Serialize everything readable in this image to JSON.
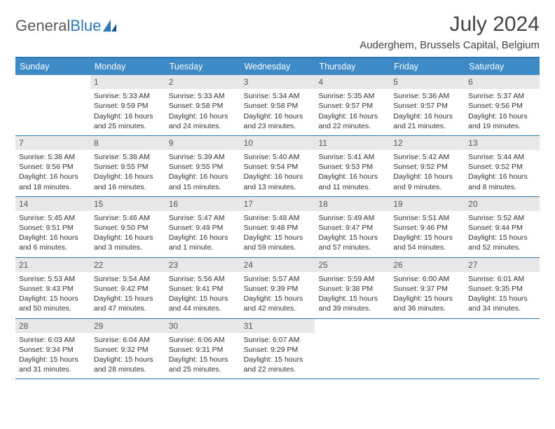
{
  "logo": {
    "text1": "General",
    "text2": "Blue"
  },
  "title": "July 2024",
  "location": "Auderghem, Brussels Capital, Belgium",
  "colors": {
    "header_bar": "#3e8ac6",
    "border": "#2d77b5",
    "daynum_bg": "#e8e8e8",
    "text": "#333333",
    "logo_gray": "#5a5a5a"
  },
  "day_names": [
    "Sunday",
    "Monday",
    "Tuesday",
    "Wednesday",
    "Thursday",
    "Friday",
    "Saturday"
  ],
  "weeks": [
    [
      {
        "n": "",
        "sr": "",
        "ss": "",
        "dl1": "",
        "dl2": ""
      },
      {
        "n": "1",
        "sr": "Sunrise: 5:33 AM",
        "ss": "Sunset: 9:59 PM",
        "dl1": "Daylight: 16 hours",
        "dl2": "and 25 minutes."
      },
      {
        "n": "2",
        "sr": "Sunrise: 5:33 AM",
        "ss": "Sunset: 9:58 PM",
        "dl1": "Daylight: 16 hours",
        "dl2": "and 24 minutes."
      },
      {
        "n": "3",
        "sr": "Sunrise: 5:34 AM",
        "ss": "Sunset: 9:58 PM",
        "dl1": "Daylight: 16 hours",
        "dl2": "and 23 minutes."
      },
      {
        "n": "4",
        "sr": "Sunrise: 5:35 AM",
        "ss": "Sunset: 9:57 PM",
        "dl1": "Daylight: 16 hours",
        "dl2": "and 22 minutes."
      },
      {
        "n": "5",
        "sr": "Sunrise: 5:36 AM",
        "ss": "Sunset: 9:57 PM",
        "dl1": "Daylight: 16 hours",
        "dl2": "and 21 minutes."
      },
      {
        "n": "6",
        "sr": "Sunrise: 5:37 AM",
        "ss": "Sunset: 9:56 PM",
        "dl1": "Daylight: 16 hours",
        "dl2": "and 19 minutes."
      }
    ],
    [
      {
        "n": "7",
        "sr": "Sunrise: 5:38 AM",
        "ss": "Sunset: 9:56 PM",
        "dl1": "Daylight: 16 hours",
        "dl2": "and 18 minutes."
      },
      {
        "n": "8",
        "sr": "Sunrise: 5:38 AM",
        "ss": "Sunset: 9:55 PM",
        "dl1": "Daylight: 16 hours",
        "dl2": "and 16 minutes."
      },
      {
        "n": "9",
        "sr": "Sunrise: 5:39 AM",
        "ss": "Sunset: 9:55 PM",
        "dl1": "Daylight: 16 hours",
        "dl2": "and 15 minutes."
      },
      {
        "n": "10",
        "sr": "Sunrise: 5:40 AM",
        "ss": "Sunset: 9:54 PM",
        "dl1": "Daylight: 16 hours",
        "dl2": "and 13 minutes."
      },
      {
        "n": "11",
        "sr": "Sunrise: 5:41 AM",
        "ss": "Sunset: 9:53 PM",
        "dl1": "Daylight: 16 hours",
        "dl2": "and 11 minutes."
      },
      {
        "n": "12",
        "sr": "Sunrise: 5:42 AM",
        "ss": "Sunset: 9:52 PM",
        "dl1": "Daylight: 16 hours",
        "dl2": "and 9 minutes."
      },
      {
        "n": "13",
        "sr": "Sunrise: 5:44 AM",
        "ss": "Sunset: 9:52 PM",
        "dl1": "Daylight: 16 hours",
        "dl2": "and 8 minutes."
      }
    ],
    [
      {
        "n": "14",
        "sr": "Sunrise: 5:45 AM",
        "ss": "Sunset: 9:51 PM",
        "dl1": "Daylight: 16 hours",
        "dl2": "and 6 minutes."
      },
      {
        "n": "15",
        "sr": "Sunrise: 5:46 AM",
        "ss": "Sunset: 9:50 PM",
        "dl1": "Daylight: 16 hours",
        "dl2": "and 3 minutes."
      },
      {
        "n": "16",
        "sr": "Sunrise: 5:47 AM",
        "ss": "Sunset: 9:49 PM",
        "dl1": "Daylight: 16 hours",
        "dl2": "and 1 minute."
      },
      {
        "n": "17",
        "sr": "Sunrise: 5:48 AM",
        "ss": "Sunset: 9:48 PM",
        "dl1": "Daylight: 15 hours",
        "dl2": "and 59 minutes."
      },
      {
        "n": "18",
        "sr": "Sunrise: 5:49 AM",
        "ss": "Sunset: 9:47 PM",
        "dl1": "Daylight: 15 hours",
        "dl2": "and 57 minutes."
      },
      {
        "n": "19",
        "sr": "Sunrise: 5:51 AM",
        "ss": "Sunset: 9:46 PM",
        "dl1": "Daylight: 15 hours",
        "dl2": "and 54 minutes."
      },
      {
        "n": "20",
        "sr": "Sunrise: 5:52 AM",
        "ss": "Sunset: 9:44 PM",
        "dl1": "Daylight: 15 hours",
        "dl2": "and 52 minutes."
      }
    ],
    [
      {
        "n": "21",
        "sr": "Sunrise: 5:53 AM",
        "ss": "Sunset: 9:43 PM",
        "dl1": "Daylight: 15 hours",
        "dl2": "and 50 minutes."
      },
      {
        "n": "22",
        "sr": "Sunrise: 5:54 AM",
        "ss": "Sunset: 9:42 PM",
        "dl1": "Daylight: 15 hours",
        "dl2": "and 47 minutes."
      },
      {
        "n": "23",
        "sr": "Sunrise: 5:56 AM",
        "ss": "Sunset: 9:41 PM",
        "dl1": "Daylight: 15 hours",
        "dl2": "and 44 minutes."
      },
      {
        "n": "24",
        "sr": "Sunrise: 5:57 AM",
        "ss": "Sunset: 9:39 PM",
        "dl1": "Daylight: 15 hours",
        "dl2": "and 42 minutes."
      },
      {
        "n": "25",
        "sr": "Sunrise: 5:59 AM",
        "ss": "Sunset: 9:38 PM",
        "dl1": "Daylight: 15 hours",
        "dl2": "and 39 minutes."
      },
      {
        "n": "26",
        "sr": "Sunrise: 6:00 AM",
        "ss": "Sunset: 9:37 PM",
        "dl1": "Daylight: 15 hours",
        "dl2": "and 36 minutes."
      },
      {
        "n": "27",
        "sr": "Sunrise: 6:01 AM",
        "ss": "Sunset: 9:35 PM",
        "dl1": "Daylight: 15 hours",
        "dl2": "and 34 minutes."
      }
    ],
    [
      {
        "n": "28",
        "sr": "Sunrise: 6:03 AM",
        "ss": "Sunset: 9:34 PM",
        "dl1": "Daylight: 15 hours",
        "dl2": "and 31 minutes."
      },
      {
        "n": "29",
        "sr": "Sunrise: 6:04 AM",
        "ss": "Sunset: 9:32 PM",
        "dl1": "Daylight: 15 hours",
        "dl2": "and 28 minutes."
      },
      {
        "n": "30",
        "sr": "Sunrise: 6:06 AM",
        "ss": "Sunset: 9:31 PM",
        "dl1": "Daylight: 15 hours",
        "dl2": "and 25 minutes."
      },
      {
        "n": "31",
        "sr": "Sunrise: 6:07 AM",
        "ss": "Sunset: 9:29 PM",
        "dl1": "Daylight: 15 hours",
        "dl2": "and 22 minutes."
      },
      {
        "n": "",
        "sr": "",
        "ss": "",
        "dl1": "",
        "dl2": ""
      },
      {
        "n": "",
        "sr": "",
        "ss": "",
        "dl1": "",
        "dl2": ""
      },
      {
        "n": "",
        "sr": "",
        "ss": "",
        "dl1": "",
        "dl2": ""
      }
    ]
  ]
}
